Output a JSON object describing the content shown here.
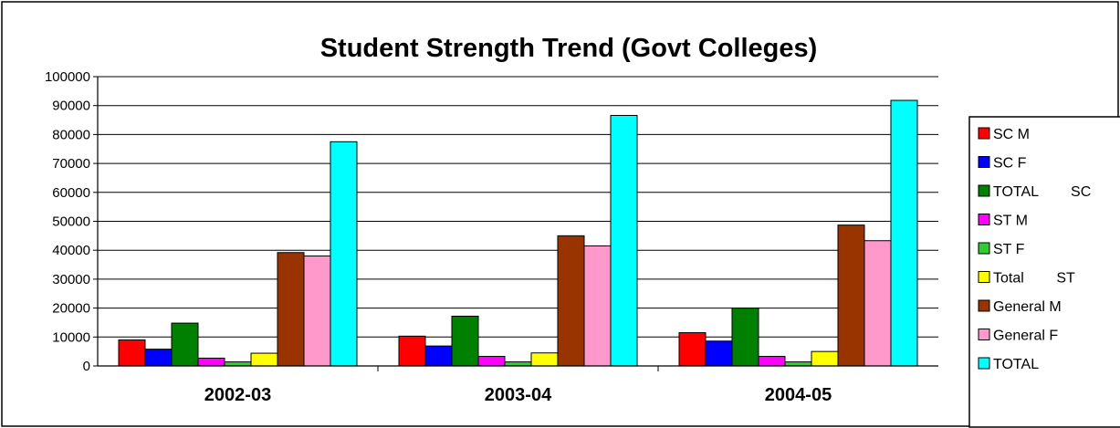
{
  "chart_data": {
    "type": "bar",
    "title": "Student Strength Trend (Govt Colleges)",
    "xlabel": "",
    "ylabel": "",
    "categories": [
      "2002-03",
      "2003-04",
      "2004-05"
    ],
    "y_ticks": [
      "0",
      "10000",
      "20000",
      "30000",
      "40000",
      "50000",
      "60000",
      "70000",
      "80000",
      "90000",
      "100000"
    ],
    "ylim": [
      0,
      100000
    ],
    "grid": true,
    "legend_position": "right",
    "series": [
      {
        "name": "SC M",
        "color": "#ff0000",
        "values": [
          9000,
          10300,
          11500
        ]
      },
      {
        "name": "SC F",
        "color": "#0000ff",
        "values": [
          5800,
          6900,
          8600
        ]
      },
      {
        "name": "TOTAL        SC",
        "color": "#008000",
        "values": [
          14800,
          17200,
          20000
        ]
      },
      {
        "name": "ST M",
        "color": "#ff00ff",
        "values": [
          2700,
          3300,
          3300
        ]
      },
      {
        "name": "ST F",
        "color": "#33cc33",
        "values": [
          1400,
          1400,
          1400
        ]
      },
      {
        "name": "Total        ST",
        "color": "#ffff00",
        "values": [
          4400,
          4500,
          5000
        ]
      },
      {
        "name": "General M",
        "color": "#993300",
        "values": [
          39200,
          45000,
          48700
        ]
      },
      {
        "name": "General F",
        "color": "#ff99cc",
        "values": [
          38000,
          41500,
          43300
        ]
      },
      {
        "name": "TOTAL",
        "color": "#00ffff",
        "values": [
          77500,
          86600,
          91800
        ]
      }
    ]
  }
}
